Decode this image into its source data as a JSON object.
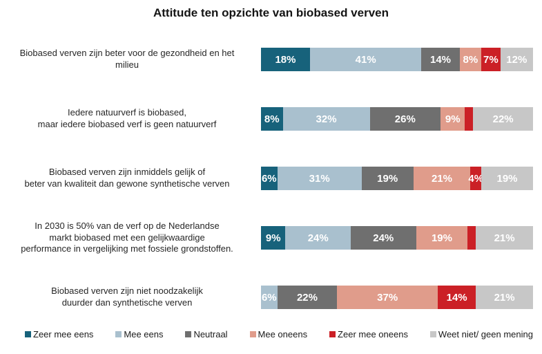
{
  "title": "Attitude ten opzichte van biobased verven",
  "chart_data": {
    "type": "bar",
    "stacked": true,
    "orientation": "horizontal",
    "value_unit": "%",
    "axis_range": [
      0,
      100
    ],
    "grid": false,
    "legend_position": "bottom",
    "label_min_value": 4,
    "categories": [
      "Biobased verven zijn beter voor de gezondheid en het\nmilieu",
      "Iedere natuurverf is biobased,\nmaar iedere biobased verf is geen natuurverf",
      "Biobased verven zijn inmiddels gelijk of\nbeter van kwaliteit dan gewone synthetische verven",
      "In 2030 is 50% van de verf op de Nederlandse\nmarkt biobased met een gelijkwaardige\nperformance in vergelijking met fossiele grondstoffen.",
      "Biobased verven zijn niet noodzakelijk\nduurder dan synthetische verven"
    ],
    "series": [
      {
        "name": "Zeer mee eens",
        "color": "#17627B",
        "values": [
          18,
          8,
          6,
          9,
          0
        ]
      },
      {
        "name": "Mee eens",
        "color": "#A9C0CE",
        "values": [
          41,
          32,
          31,
          24,
          6
        ]
      },
      {
        "name": "Neutraal",
        "color": "#6F6F6F",
        "values": [
          14,
          26,
          19,
          24,
          22
        ]
      },
      {
        "name": "Mee oneens",
        "color": "#E09C8B",
        "values": [
          8,
          9,
          21,
          19,
          37
        ]
      },
      {
        "name": "Zeer mee oneens",
        "color": "#CB2026",
        "values": [
          7,
          3,
          4,
          3,
          14
        ]
      },
      {
        "name": "Weet niet/ geen mening",
        "color": "#C7C7C7",
        "values": [
          12,
          22,
          19,
          21,
          21
        ]
      }
    ]
  }
}
